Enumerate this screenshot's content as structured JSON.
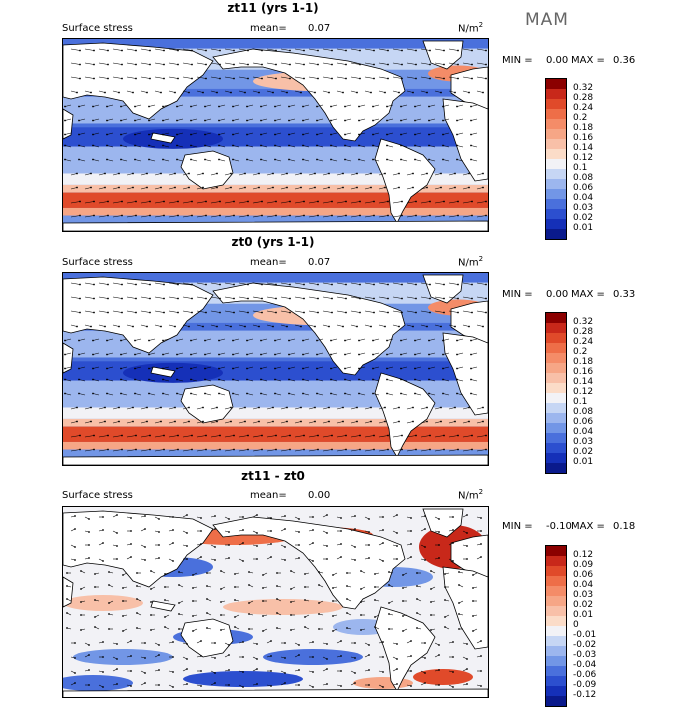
{
  "season": "MAM",
  "panels": [
    {
      "title": "zt11 (yrs 1-1)",
      "field_label": "Surface stress",
      "mean_label": "mean=",
      "mean_value": "0.07",
      "units": "N/m",
      "units_sup": "2",
      "min_label": "MIN =",
      "min_value": "0.00",
      "max_label": "MAX =",
      "max_value": "0.36",
      "colorbar": {
        "levels": [
          "0.32",
          "0.28",
          "0.24",
          "0.2",
          "0.18",
          "0.16",
          "0.14",
          "0.12",
          "0.1",
          "0.08",
          "0.06",
          "0.04",
          "0.03",
          "0.02",
          "0.01"
        ],
        "colors": [
          "#8b0000",
          "#c8281a",
          "#e04a2a",
          "#ee6e48",
          "#f48c68",
          "#f6a686",
          "#f8c0a8",
          "#fbdcc8",
          "#f2f2f6",
          "#c6d6f4",
          "#9cb6ee",
          "#7296e6",
          "#4a70dc",
          "#2c4fcf",
          "#1530b8",
          "#0a1a8c"
        ]
      }
    },
    {
      "title": "zt0 (yrs 1-1)",
      "field_label": "Surface stress",
      "mean_label": "mean=",
      "mean_value": "0.07",
      "units": "N/m",
      "units_sup": "2",
      "min_label": "MIN =",
      "min_value": "0.00",
      "max_label": "MAX =",
      "max_value": "0.33",
      "colorbar": {
        "levels": [
          "0.32",
          "0.28",
          "0.24",
          "0.2",
          "0.18",
          "0.16",
          "0.14",
          "0.12",
          "0.1",
          "0.08",
          "0.06",
          "0.04",
          "0.03",
          "0.02",
          "0.01"
        ],
        "colors": [
          "#8b0000",
          "#c8281a",
          "#e04a2a",
          "#ee6e48",
          "#f48c68",
          "#f6a686",
          "#f8c0a8",
          "#fbdcc8",
          "#f2f2f6",
          "#c6d6f4",
          "#9cb6ee",
          "#7296e6",
          "#4a70dc",
          "#2c4fcf",
          "#1530b8",
          "#0a1a8c"
        ]
      }
    },
    {
      "title": "zt11 - zt0",
      "field_label": "Surface stress",
      "mean_label": "mean=",
      "mean_value": "0.00",
      "units": "N/m",
      "units_sup": "2",
      "min_label": "MIN =",
      "min_value": "-0.10",
      "max_label": "MAX =",
      "max_value": "0.18",
      "colorbar": {
        "levels": [
          "0.12",
          "0.09",
          "0.06",
          "0.04",
          "0.03",
          "0.02",
          "0.01",
          "0",
          "-0.01",
          "-0.02",
          "-0.03",
          "-0.04",
          "-0.06",
          "-0.09",
          "-0.12"
        ],
        "colors": [
          "#8b0000",
          "#c8281a",
          "#e04a2a",
          "#ee6e48",
          "#f48c68",
          "#f6a686",
          "#f8c0a8",
          "#fbdcc8",
          "#f2f2f6",
          "#c6d6f4",
          "#9cb6ee",
          "#7296e6",
          "#4a70dc",
          "#2c4fcf",
          "#1530b8",
          "#0a1a8c"
        ]
      }
    }
  ]
}
